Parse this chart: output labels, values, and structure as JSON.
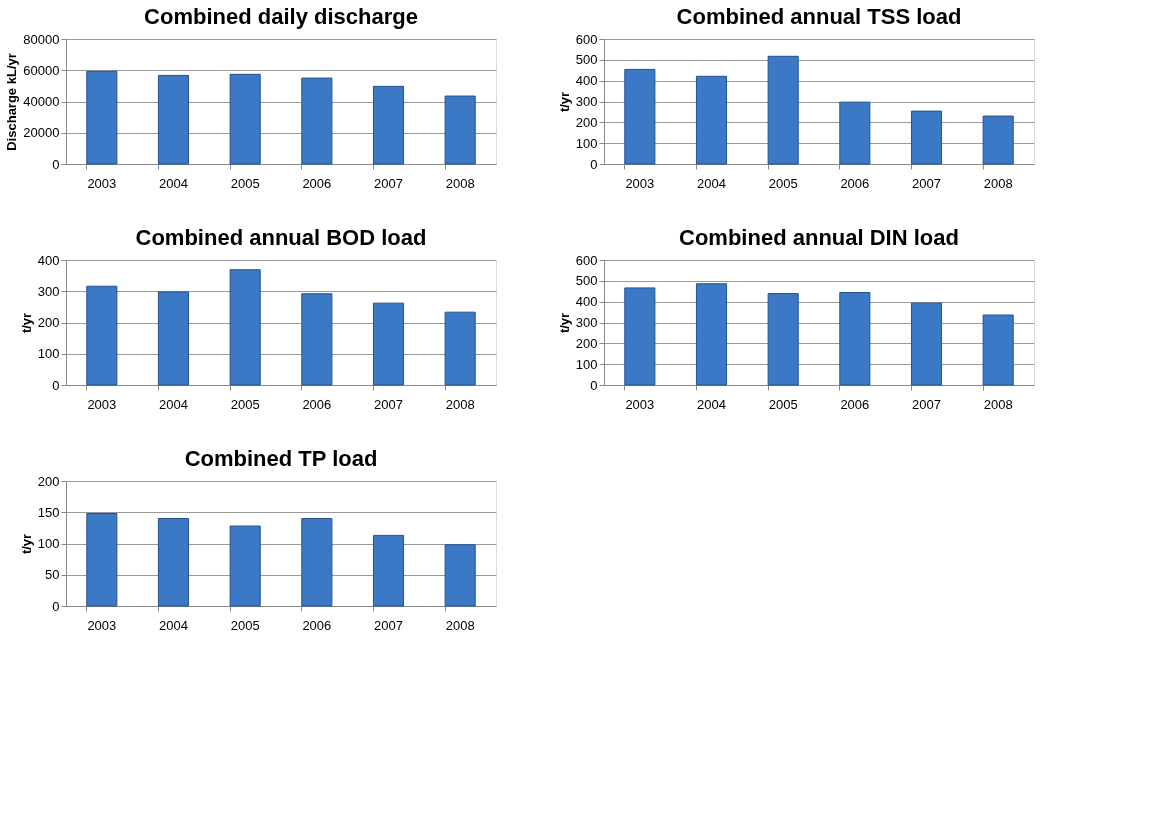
{
  "chart_data": [
    {
      "type": "bar",
      "title": "Combined daily discharge",
      "ylabel": "Discharge kL/yr",
      "categories": [
        "2003",
        "2004",
        "2005",
        "2006",
        "2007",
        "2008"
      ],
      "values": [
        59300,
        56700,
        57400,
        55000,
        49700,
        43500
      ],
      "color": "#3b78c6",
      "ylim": [
        0,
        80000
      ],
      "yticks": [
        0,
        20000,
        40000,
        60000,
        80000
      ],
      "grid": "y"
    },
    {
      "type": "bar",
      "title": "Combined annual TSS load",
      "ylabel": "t/yr",
      "categories": [
        "2003",
        "2004",
        "2005",
        "2006",
        "2007",
        "2008"
      ],
      "values": [
        454,
        421,
        517,
        297,
        254,
        230
      ],
      "color": "#3b78c6",
      "ylim": [
        0,
        600
      ],
      "yticks": [
        0,
        100,
        200,
        300,
        400,
        500,
        600
      ],
      "grid": "y"
    },
    {
      "type": "bar",
      "title": "Combined annual BOD load",
      "ylabel": "t/yr",
      "categories": [
        "2003",
        "2004",
        "2005",
        "2006",
        "2007",
        "2008"
      ],
      "values": [
        316,
        298,
        369,
        292,
        262,
        233
      ],
      "color": "#3b78c6",
      "ylim": [
        0,
        400
      ],
      "yticks": [
        0,
        100,
        200,
        300,
        400
      ],
      "grid": "y"
    },
    {
      "type": "bar",
      "title": "Combined annual DIN load",
      "ylabel": "t/yr",
      "categories": [
        "2003",
        "2004",
        "2005",
        "2006",
        "2007",
        "2008"
      ],
      "values": [
        466,
        486,
        439,
        444,
        393,
        336
      ],
      "color": "#3b78c6",
      "ylim": [
        0,
        600
      ],
      "yticks": [
        0,
        100,
        200,
        300,
        400,
        500,
        600
      ],
      "grid": "y"
    },
    {
      "type": "bar",
      "title": "Combined TP load",
      "ylabel": "t/yr",
      "categories": [
        "2003",
        "2004",
        "2005",
        "2006",
        "2007",
        "2008"
      ],
      "values": [
        148,
        140,
        128,
        140,
        113,
        98
      ],
      "color": "#3b78c6",
      "ylim": [
        0,
        200
      ],
      "yticks": [
        0,
        50,
        100,
        150,
        200
      ],
      "grid": "y"
    }
  ]
}
